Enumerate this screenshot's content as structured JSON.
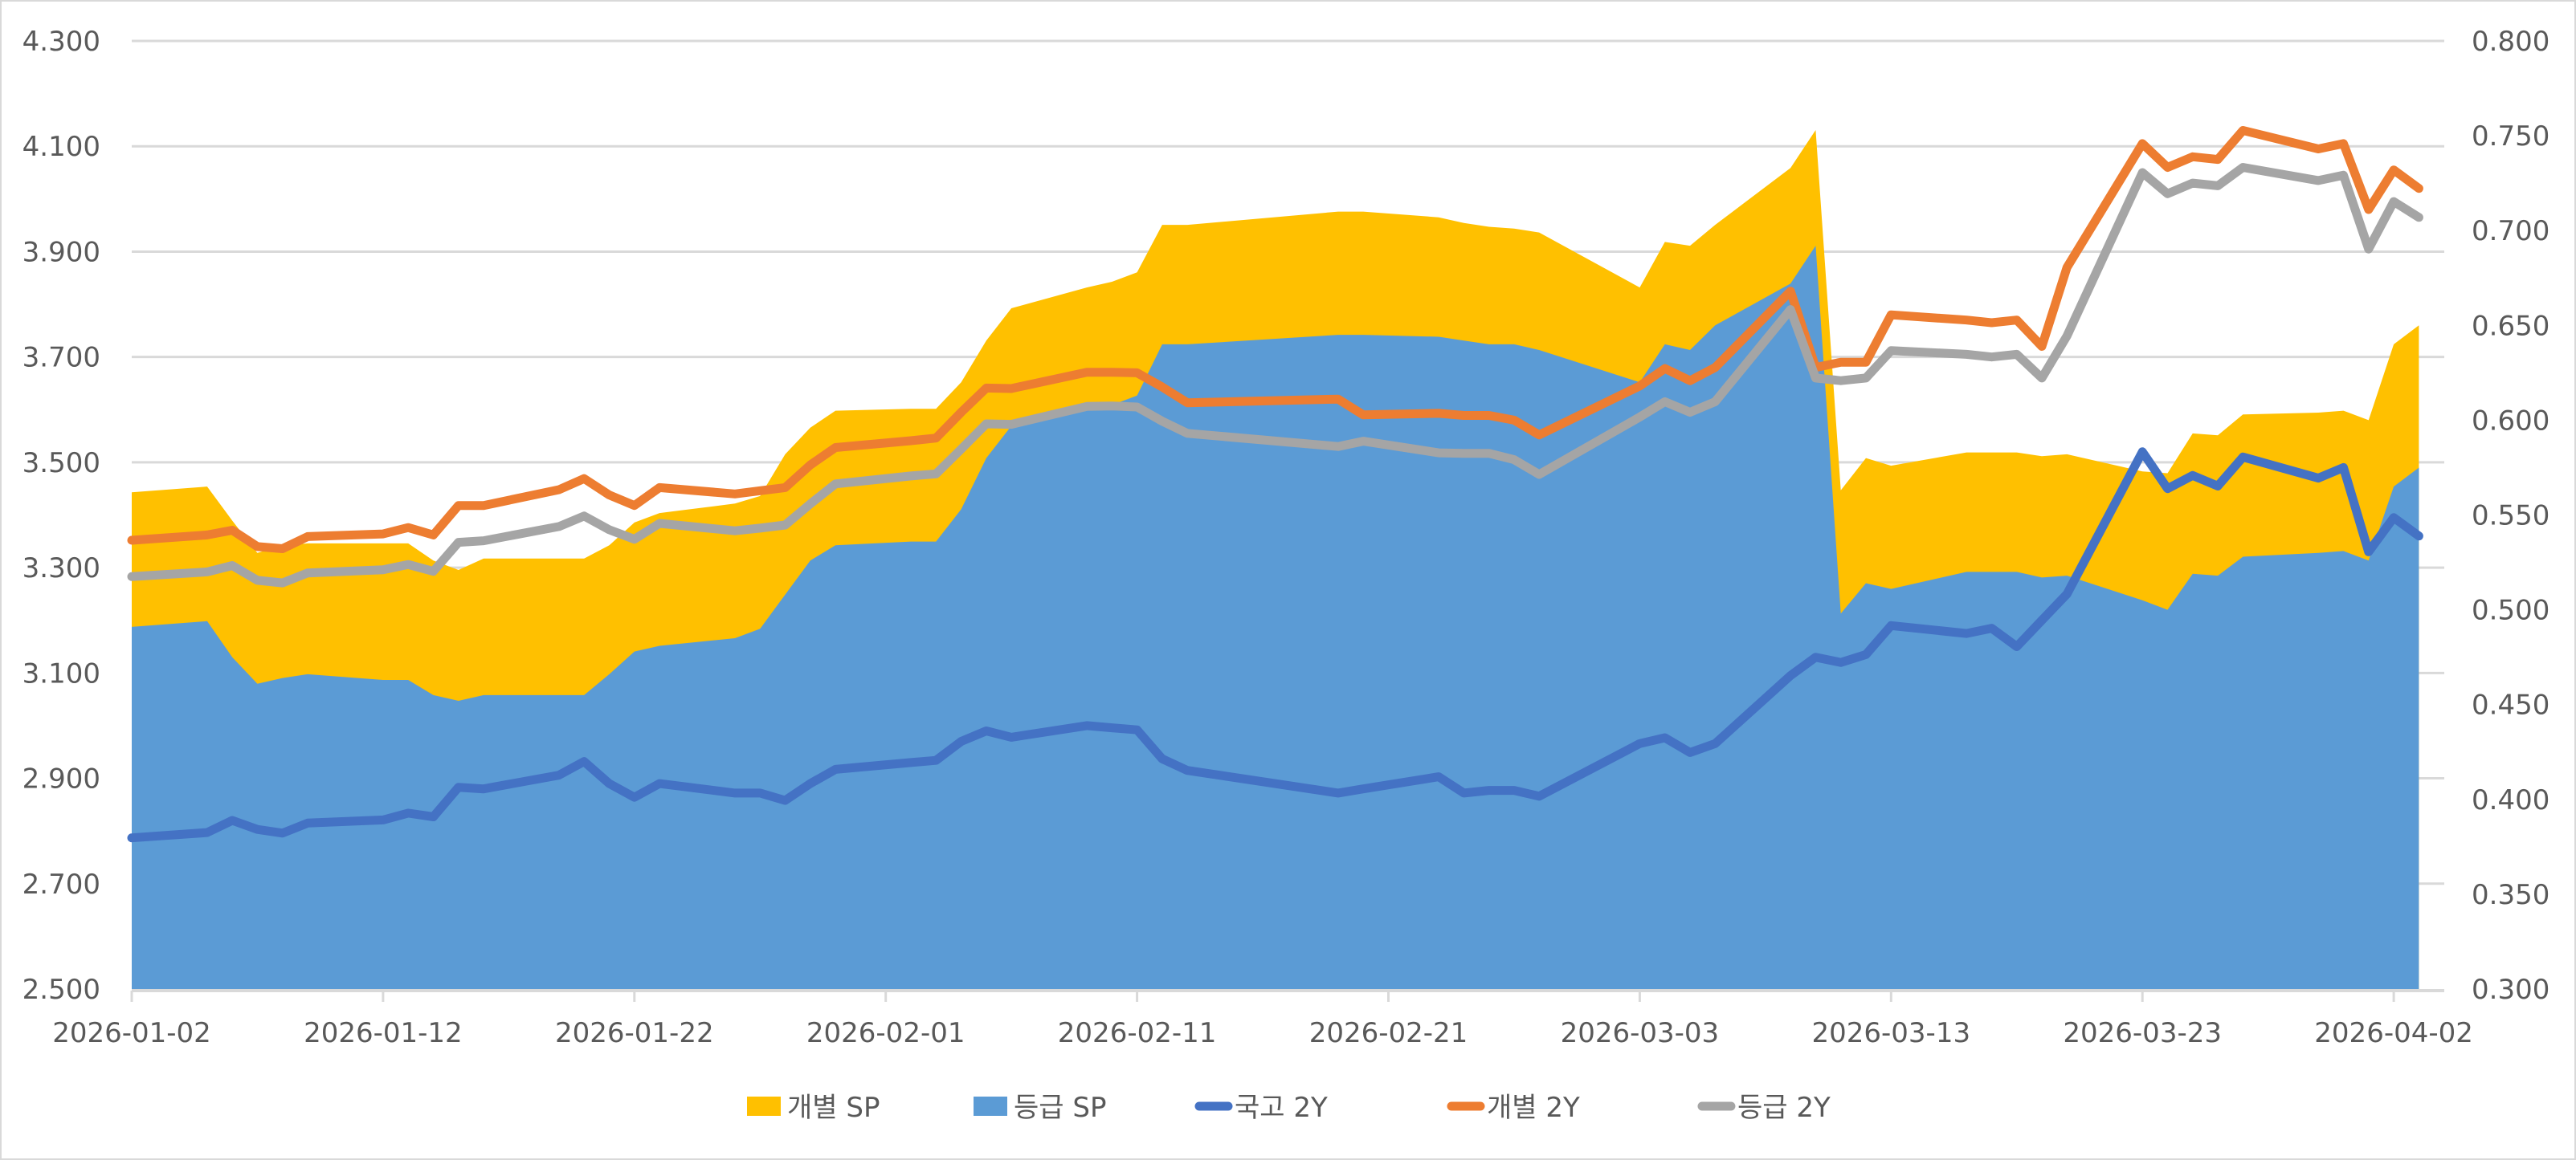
{
  "chart_data": {
    "type": "area+line",
    "title": "",
    "xlabel": "",
    "ylabel_left": "",
    "ylabel_right": "",
    "grid": true,
    "legend_position": "bottom",
    "left_axis": {
      "min": 2.5,
      "max": 4.3,
      "step": 0.2,
      "ticks": [
        "4.300",
        "4.100",
        "3.900",
        "3.700",
        "3.500",
        "3.300",
        "3.100",
        "2.900",
        "2.700",
        "2.500"
      ]
    },
    "right_axis": {
      "min": 0.3,
      "max": 0.8,
      "step": 0.05,
      "ticks": [
        "0.800",
        "0.750",
        "0.700",
        "0.650",
        "0.600",
        "0.550",
        "0.500",
        "0.450",
        "0.400",
        "0.350",
        "0.300"
      ]
    },
    "x_tick_labels": [
      "2026-01-02",
      "2026-01-12",
      "2026-01-22",
      "2026-02-01",
      "2026-02-11",
      "2026-02-21",
      "2026-03-03",
      "2026-03-13",
      "2026-03-23",
      "2026-04-02"
    ],
    "x": [
      "2026-01-02",
      "2026-01-05",
      "2026-01-06",
      "2026-01-07",
      "2026-01-08",
      "2026-01-09",
      "2026-01-12",
      "2026-01-13",
      "2026-01-14",
      "2026-01-15",
      "2026-01-16",
      "2026-01-19",
      "2026-01-20",
      "2026-01-21",
      "2026-01-22",
      "2026-01-23",
      "2026-01-26",
      "2026-01-27",
      "2026-01-28",
      "2026-01-29",
      "2026-01-30",
      "2026-02-02",
      "2026-02-03",
      "2026-02-04",
      "2026-02-05",
      "2026-02-06",
      "2026-02-09",
      "2026-02-10",
      "2026-02-11",
      "2026-02-12",
      "2026-02-13",
      "2026-02-19",
      "2026-02-20",
      "2026-02-23",
      "2026-02-24",
      "2026-02-25",
      "2026-02-26",
      "2026-02-27",
      "2026-03-03",
      "2026-03-04",
      "2026-03-05",
      "2026-03-06",
      "2026-03-09",
      "2026-03-10",
      "2026-03-11",
      "2026-03-12",
      "2026-03-13",
      "2026-03-16",
      "2026-03-17",
      "2026-03-18",
      "2026-03-19",
      "2026-03-20",
      "2026-03-23",
      "2026-03-24",
      "2026-03-25",
      "2026-03-26",
      "2026-03-27",
      "2026-03-30",
      "2026-03-31",
      "2026-04-01",
      "2026-04-02",
      "2026-04-03"
    ],
    "days": [
      0,
      3,
      4,
      5,
      6,
      7,
      10,
      11,
      12,
      13,
      14,
      17,
      18,
      19,
      20,
      21,
      24,
      25,
      26,
      27,
      28,
      31,
      32,
      33,
      34,
      35,
      38,
      39,
      40,
      41,
      42,
      48,
      49,
      52,
      53,
      54,
      55,
      56,
      60,
      61,
      62,
      63,
      66,
      67,
      68,
      69,
      70,
      73,
      74,
      75,
      76,
      77,
      80,
      81,
      82,
      83,
      84,
      87,
      88,
      89,
      90,
      91
    ],
    "series": [
      {
        "name": "개별 SP",
        "type": "area",
        "axis": "right",
        "color": "#FFC000",
        "values": [
          0.562,
          0.565,
          0.547,
          0.53,
          0.534,
          0.535,
          0.535,
          0.535,
          0.526,
          0.521,
          0.527,
          0.527,
          0.527,
          0.534,
          0.546,
          0.551,
          0.556,
          0.56,
          0.582,
          0.596,
          0.605,
          0.606,
          0.606,
          0.62,
          0.642,
          0.659,
          0.67,
          0.673,
          0.678,
          0.703,
          0.703,
          0.71,
          0.71,
          0.707,
          0.704,
          0.702,
          0.701,
          0.699,
          0.67,
          0.694,
          0.692,
          0.703,
          0.733,
          0.753,
          0.563,
          0.58,
          0.576,
          0.583,
          0.583,
          0.583,
          0.581,
          0.582,
          0.573,
          0.572,
          0.593,
          0.592,
          0.603,
          0.604,
          0.605,
          0.6,
          0.64,
          0.65
        ]
      },
      {
        "name": "등급 SP",
        "type": "area",
        "axis": "right",
        "color": "#5B9BD5",
        "values": [
          0.491,
          0.494,
          0.475,
          0.461,
          0.464,
          0.466,
          0.463,
          0.463,
          0.455,
          0.452,
          0.455,
          0.455,
          0.455,
          0.466,
          0.478,
          0.481,
          0.485,
          0.49,
          0.508,
          0.526,
          0.534,
          0.536,
          0.536,
          0.553,
          0.58,
          0.597,
          0.606,
          0.608,
          0.613,
          0.64,
          0.64,
          0.645,
          0.645,
          0.644,
          0.642,
          0.64,
          0.64,
          0.637,
          0.62,
          0.64,
          0.637,
          0.65,
          0.672,
          0.692,
          0.498,
          0.514,
          0.511,
          0.52,
          0.52,
          0.52,
          0.517,
          0.518,
          0.505,
          0.5,
          0.519,
          0.518,
          0.528,
          0.53,
          0.531,
          0.526,
          0.565,
          0.575
        ]
      },
      {
        "name": "국고 2Y",
        "type": "line",
        "axis": "left",
        "color": "#4472C4",
        "values": [
          2.787,
          2.797,
          2.82,
          2.803,
          2.796,
          2.815,
          2.821,
          2.834,
          2.827,
          2.883,
          2.88,
          2.906,
          2.932,
          2.89,
          2.864,
          2.89,
          2.872,
          2.872,
          2.858,
          2.89,
          2.917,
          2.93,
          2.934,
          2.97,
          2.99,
          2.978,
          3.0,
          2.996,
          2.992,
          2.937,
          2.915,
          2.872,
          2.88,
          2.903,
          2.872,
          2.877,
          2.877,
          2.866,
          2.966,
          2.977,
          2.949,
          2.966,
          3.095,
          3.13,
          3.12,
          3.135,
          3.19,
          3.175,
          3.185,
          3.15,
          3.2,
          3.25,
          3.52,
          3.45,
          3.475,
          3.455,
          3.51,
          3.47,
          3.49,
          3.33,
          3.395,
          3.36
        ]
      },
      {
        "name": "개별 2Y",
        "type": "line",
        "axis": "left",
        "color": "#ED7D31",
        "values": [
          3.352,
          3.362,
          3.371,
          3.34,
          3.336,
          3.359,
          3.364,
          3.376,
          3.362,
          3.418,
          3.418,
          3.448,
          3.469,
          3.438,
          3.418,
          3.452,
          3.44,
          3.446,
          3.452,
          3.495,
          3.528,
          3.541,
          3.546,
          3.595,
          3.641,
          3.64,
          3.671,
          3.671,
          3.67,
          3.643,
          3.613,
          3.62,
          3.59,
          3.593,
          3.589,
          3.589,
          3.58,
          3.552,
          3.645,
          3.678,
          3.655,
          3.68,
          3.825,
          3.68,
          3.69,
          3.69,
          3.78,
          3.77,
          3.765,
          3.77,
          3.72,
          3.87,
          4.105,
          4.06,
          4.08,
          4.075,
          4.13,
          4.095,
          4.105,
          3.98,
          4.055,
          4.02
        ]
      },
      {
        "name": "등급 2Y",
        "type": "line",
        "axis": "left",
        "color": "#A5A5A5",
        "values": [
          3.283,
          3.292,
          3.304,
          3.276,
          3.271,
          3.29,
          3.296,
          3.306,
          3.293,
          3.348,
          3.351,
          3.378,
          3.398,
          3.372,
          3.354,
          3.384,
          3.37,
          3.375,
          3.381,
          3.421,
          3.459,
          3.474,
          3.478,
          3.525,
          3.573,
          3.572,
          3.606,
          3.607,
          3.605,
          3.578,
          3.555,
          3.53,
          3.54,
          3.518,
          3.517,
          3.517,
          3.505,
          3.477,
          3.586,
          3.615,
          3.595,
          3.615,
          3.79,
          3.66,
          3.655,
          3.66,
          3.712,
          3.705,
          3.7,
          3.705,
          3.66,
          3.74,
          4.05,
          4.01,
          4.03,
          4.025,
          4.06,
          4.035,
          4.045,
          3.905,
          3.995,
          3.965
        ]
      }
    ]
  },
  "legend": {
    "items": [
      {
        "label": "개별 SP",
        "kind": "box",
        "color": "#FFC000"
      },
      {
        "label": "등급 SP",
        "kind": "box",
        "color": "#5B9BD5"
      },
      {
        "label": "국고 2Y",
        "kind": "line",
        "color": "#4472C4"
      },
      {
        "label": "개별 2Y",
        "kind": "line",
        "color": "#ED7D31"
      },
      {
        "label": "등급 2Y",
        "kind": "line",
        "color": "#A5A5A5"
      }
    ]
  },
  "colors": {
    "grid": "#D9D9D9",
    "axis_text": "#595959",
    "frame": "#D9D9D9"
  }
}
